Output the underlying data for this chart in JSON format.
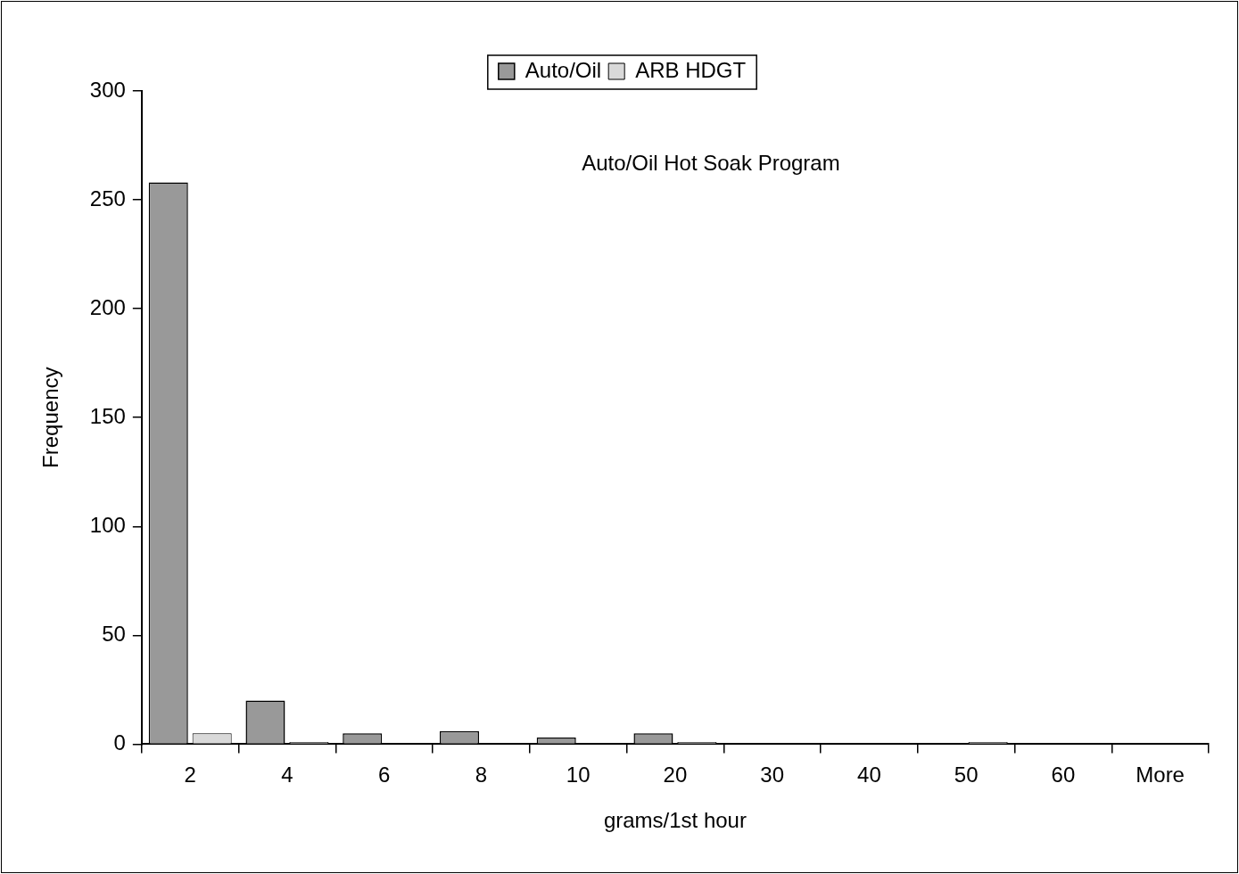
{
  "chart_data": {
    "type": "bar",
    "categories": [
      "2",
      "4",
      "6",
      "8",
      "10",
      "20",
      "30",
      "40",
      "50",
      "60",
      "More"
    ],
    "series": [
      {
        "name": "Auto/Oil",
        "color": "#999999",
        "values": [
          258,
          20,
          5,
          6,
          3,
          5,
          0,
          0,
          0,
          0,
          0
        ]
      },
      {
        "name": "ARB HDGT",
        "color": "#d9d9d9",
        "values": [
          5,
          1,
          0,
          0,
          0,
          1,
          0,
          0,
          1,
          0,
          0
        ]
      }
    ],
    "xlabel": "grams/1st hour",
    "ylabel": "Frequency",
    "annotations": [
      "Auto/Oil Hot Soak Program"
    ],
    "ylim": [
      0,
      300
    ],
    "yticks": [
      0,
      50,
      100,
      150,
      200,
      250,
      300
    ],
    "grid": false,
    "legend": "top"
  }
}
